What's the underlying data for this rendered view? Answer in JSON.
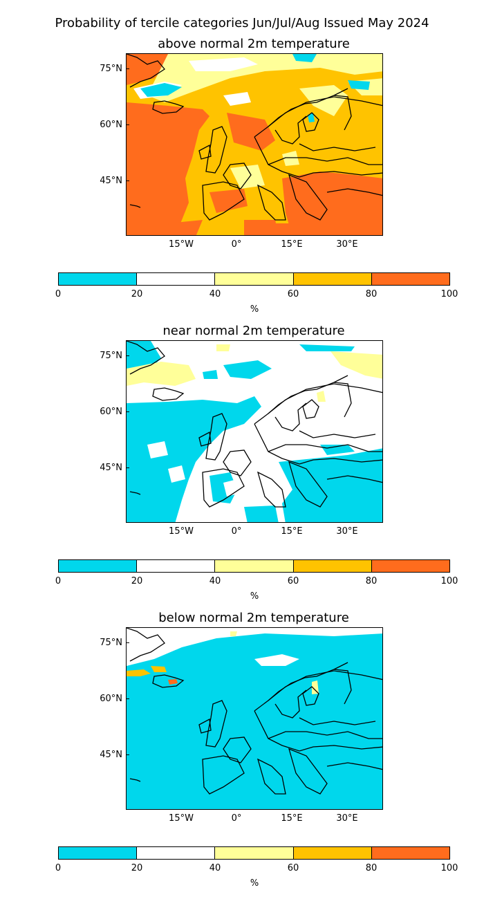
{
  "figure": {
    "title": "Probability of tercile categories Jun/Jul/Aug Issued May 2024"
  },
  "axes": {
    "lat_ticks": [
      "75°N",
      "60°N",
      "45°N"
    ],
    "lon_ticks": [
      "15°W",
      "0°",
      "15°E",
      "30°E"
    ]
  },
  "colorbar": {
    "ticks": [
      "0",
      "20",
      "40",
      "60",
      "80",
      "100"
    ],
    "unit": "%",
    "bins": [
      {
        "range": [
          0,
          20
        ],
        "color": "#00d7ec"
      },
      {
        "range": [
          20,
          40
        ],
        "color": "#ffffff"
      },
      {
        "range": [
          40,
          60
        ],
        "color": "#ffff99"
      },
      {
        "range": [
          60,
          80
        ],
        "color": "#ffc300"
      },
      {
        "range": [
          80,
          100
        ],
        "color": "#ff6c1d"
      }
    ]
  },
  "panels": [
    {
      "title": "above normal 2m temperature",
      "dominant_category": "60-80%"
    },
    {
      "title": "near normal 2m temperature",
      "dominant_category": "20-40%"
    },
    {
      "title": "below normal 2m temperature",
      "dominant_category": "0-20%"
    }
  ]
}
